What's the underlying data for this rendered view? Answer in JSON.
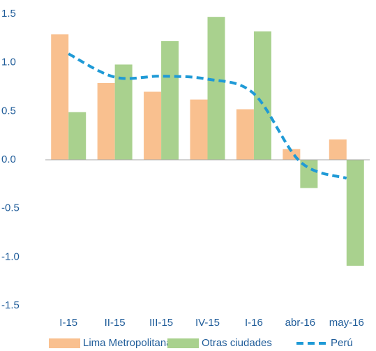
{
  "chart_data": {
    "type": "bar",
    "categories": [
      "I-15",
      "II-15",
      "III-15",
      "IV-15",
      "I-16",
      "abr-16",
      "may-16"
    ],
    "series": [
      {
        "name": "Lima Metropolitana",
        "color": "#f9c08f",
        "type": "bar",
        "values": [
          1.29,
          0.79,
          0.7,
          0.62,
          0.52,
          0.11,
          0.21
        ]
      },
      {
        "name": "Otras ciudades",
        "color": "#a9d18e",
        "type": "bar",
        "values": [
          0.49,
          0.98,
          1.22,
          1.47,
          1.32,
          -0.29,
          -1.09
        ]
      },
      {
        "name": "Perú",
        "color": "#1f9ad6",
        "type": "line",
        "dashed": true,
        "values": [
          1.09,
          0.85,
          0.86,
          0.83,
          0.68,
          -0.02,
          -0.19
        ]
      }
    ],
    "ylim": [
      -1.5,
      1.5
    ],
    "yticks": [
      1.5,
      {
        "value": 1.0,
        "label": "1.0"
      },
      0.5,
      {
        "value": 0.0,
        "label": "0.0"
      },
      -0.5,
      {
        "value": -1.0,
        "label": "-1.0"
      },
      -1.5
    ],
    "legend": "bottom"
  }
}
